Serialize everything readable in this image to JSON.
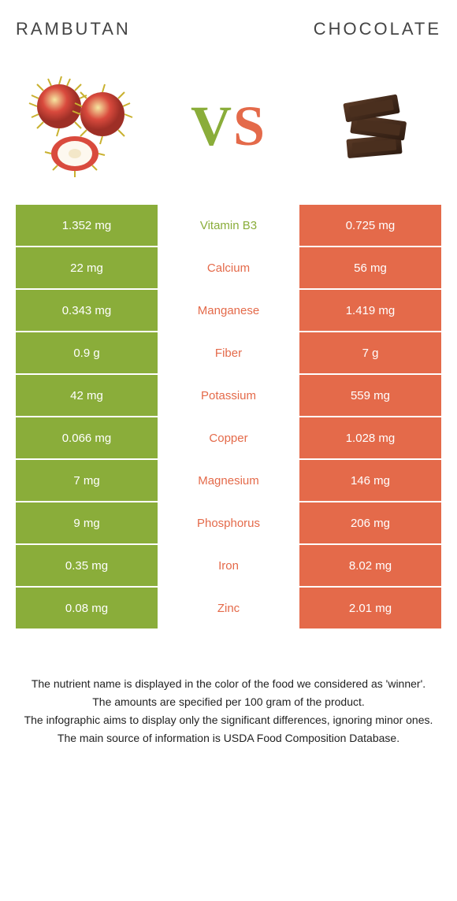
{
  "left_title": "Rambutan",
  "right_title": "Chocolate",
  "vs_left": "V",
  "vs_right": "S",
  "colors": {
    "left": "#8aad3a",
    "right": "#e46a4a",
    "mid_bg": "#ffffff"
  },
  "fonts": {
    "title_size": 22,
    "title_spacing": 3,
    "vs_size": 72,
    "cell_size": 15,
    "footer_size": 14
  },
  "rows": [
    {
      "left": "1.352 mg",
      "label": "Vitamin B3",
      "right": "0.725 mg",
      "winner": "left"
    },
    {
      "left": "22 mg",
      "label": "Calcium",
      "right": "56 mg",
      "winner": "right"
    },
    {
      "left": "0.343 mg",
      "label": "Manganese",
      "right": "1.419 mg",
      "winner": "right"
    },
    {
      "left": "0.9 g",
      "label": "Fiber",
      "right": "7 g",
      "winner": "right"
    },
    {
      "left": "42 mg",
      "label": "Potassium",
      "right": "559 mg",
      "winner": "right"
    },
    {
      "left": "0.066 mg",
      "label": "Copper",
      "right": "1.028 mg",
      "winner": "right"
    },
    {
      "left": "7 mg",
      "label": "Magnesium",
      "right": "146 mg",
      "winner": "right"
    },
    {
      "left": "9 mg",
      "label": "Phosphorus",
      "right": "206 mg",
      "winner": "right"
    },
    {
      "left": "0.35 mg",
      "label": "Iron",
      "right": "8.02 mg",
      "winner": "right"
    },
    {
      "left": "0.08 mg",
      "label": "Zinc",
      "right": "2.01 mg",
      "winner": "right"
    }
  ],
  "footer": [
    "The nutrient name is displayed in the color of the food we considered as 'winner'.",
    "The amounts are specified per 100 gram of the product.",
    "The infographic aims to display only the significant differences, ignoring minor ones.",
    "The main source of information is USDA Food Composition Database."
  ]
}
